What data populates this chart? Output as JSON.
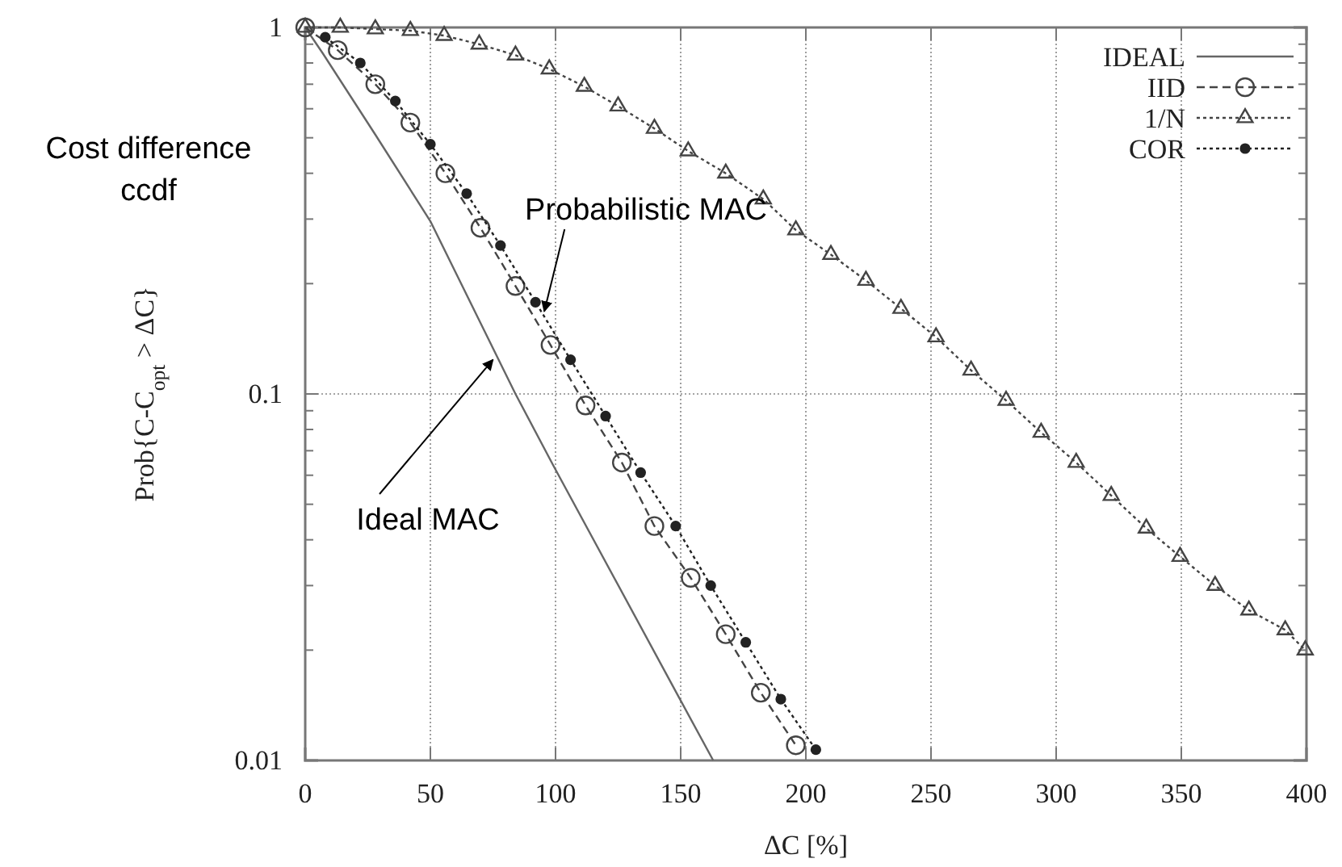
{
  "chart_data": {
    "type": "line",
    "xlabel": "ΔC [%]",
    "ylabel": "Prob{C-C$_{opt}$ > ΔC}",
    "log": "y",
    "grid": true,
    "legend": "top right",
    "xlim": [
      0,
      400
    ],
    "xticks": [
      0,
      50,
      100,
      150,
      200,
      250,
      300,
      350,
      400
    ],
    "ylim": [
      0.01,
      1
    ],
    "yticks": [
      0.01,
      {
        "value": 0.02,
        "label": null
      },
      {
        "value": 0.03,
        "label": null
      },
      {
        "value": 0.04,
        "label": null
      },
      {
        "value": 0.05,
        "label": null
      },
      {
        "value": 0.06,
        "label": null
      },
      {
        "value": 0.07,
        "label": null
      },
      {
        "value": 0.08,
        "label": null
      },
      {
        "value": 0.09,
        "label": null
      },
      0.1,
      {
        "value": 0.2,
        "label": null
      },
      {
        "value": 0.3,
        "label": null
      },
      {
        "value": 0.4,
        "label": null
      },
      {
        "value": 0.5,
        "label": null
      },
      {
        "value": 0.6,
        "label": null
      },
      {
        "value": 0.7,
        "label": null
      },
      {
        "value": 0.8,
        "label": null
      },
      {
        "value": 0.9,
        "label": null
      },
      1
    ],
    "series": [
      {
        "name": "IDEAL",
        "color": "#666666",
        "marker": "none",
        "line_style": "solid",
        "x": [
          0,
          7,
          28,
          50,
          84,
          99,
          149,
          163
        ],
        "values": [
          1,
          0.85,
          0.51,
          0.296,
          0.1,
          0.064,
          0.015,
          0.01
        ]
      },
      {
        "name": "IID",
        "color": "#444444",
        "marker": "circle",
        "line_style": "dashed",
        "x": [
          0,
          13,
          28,
          42,
          56,
          70,
          84,
          98,
          112,
          126.5,
          139.5,
          154,
          168,
          182,
          196
        ],
        "values": [
          1,
          0.867,
          0.7,
          0.55,
          0.4,
          0.284,
          0.197,
          0.136,
          0.093,
          0.065,
          0.0436,
          0.0315,
          0.0221,
          0.0153,
          0.011
        ]
      },
      {
        "name": "1/N",
        "color": "#444444",
        "marker": "triangle",
        "line_style": "dotted",
        "x": [
          0,
          14,
          28,
          42,
          55.5,
          69.5,
          84,
          97.5,
          111.5,
          125,
          139.5,
          153,
          168,
          183,
          196,
          210,
          224,
          238,
          252,
          266,
          280,
          294,
          308,
          322,
          336,
          349.5,
          363.5,
          377,
          391.5,
          399.5
        ],
        "values": [
          1,
          1,
          0.99,
          0.98,
          0.95,
          0.9,
          0.84,
          0.77,
          0.69,
          0.61,
          0.53,
          0.46,
          0.4,
          0.34,
          0.28,
          0.24,
          0.204,
          0.171,
          0.143,
          0.116,
          0.096,
          0.0785,
          0.065,
          0.0528,
          0.043,
          0.036,
          0.03,
          0.0257,
          0.0227,
          0.02
        ]
      },
      {
        "name": "COR",
        "color": "#222222",
        "marker": "dot",
        "line_style": "dotted",
        "x": [
          8,
          22,
          36,
          50,
          64.5,
          78,
          92,
          106,
          120,
          134,
          148,
          162,
          176,
          190,
          204
        ],
        "values": [
          0.94,
          0.8,
          0.63,
          0.48,
          0.352,
          0.254,
          0.178,
          0.124,
          0.087,
          0.061,
          0.0436,
          0.03,
          0.021,
          0.0147,
          0.0107
        ]
      }
    ],
    "annotations": [
      "Cost difference\nccdf",
      {
        "text": "Probabilistic MAC",
        "x": 95.5,
        "y": 0.168
      },
      {
        "text": "Ideal MAC",
        "x": 75,
        "y": 0.124
      }
    ]
  }
}
